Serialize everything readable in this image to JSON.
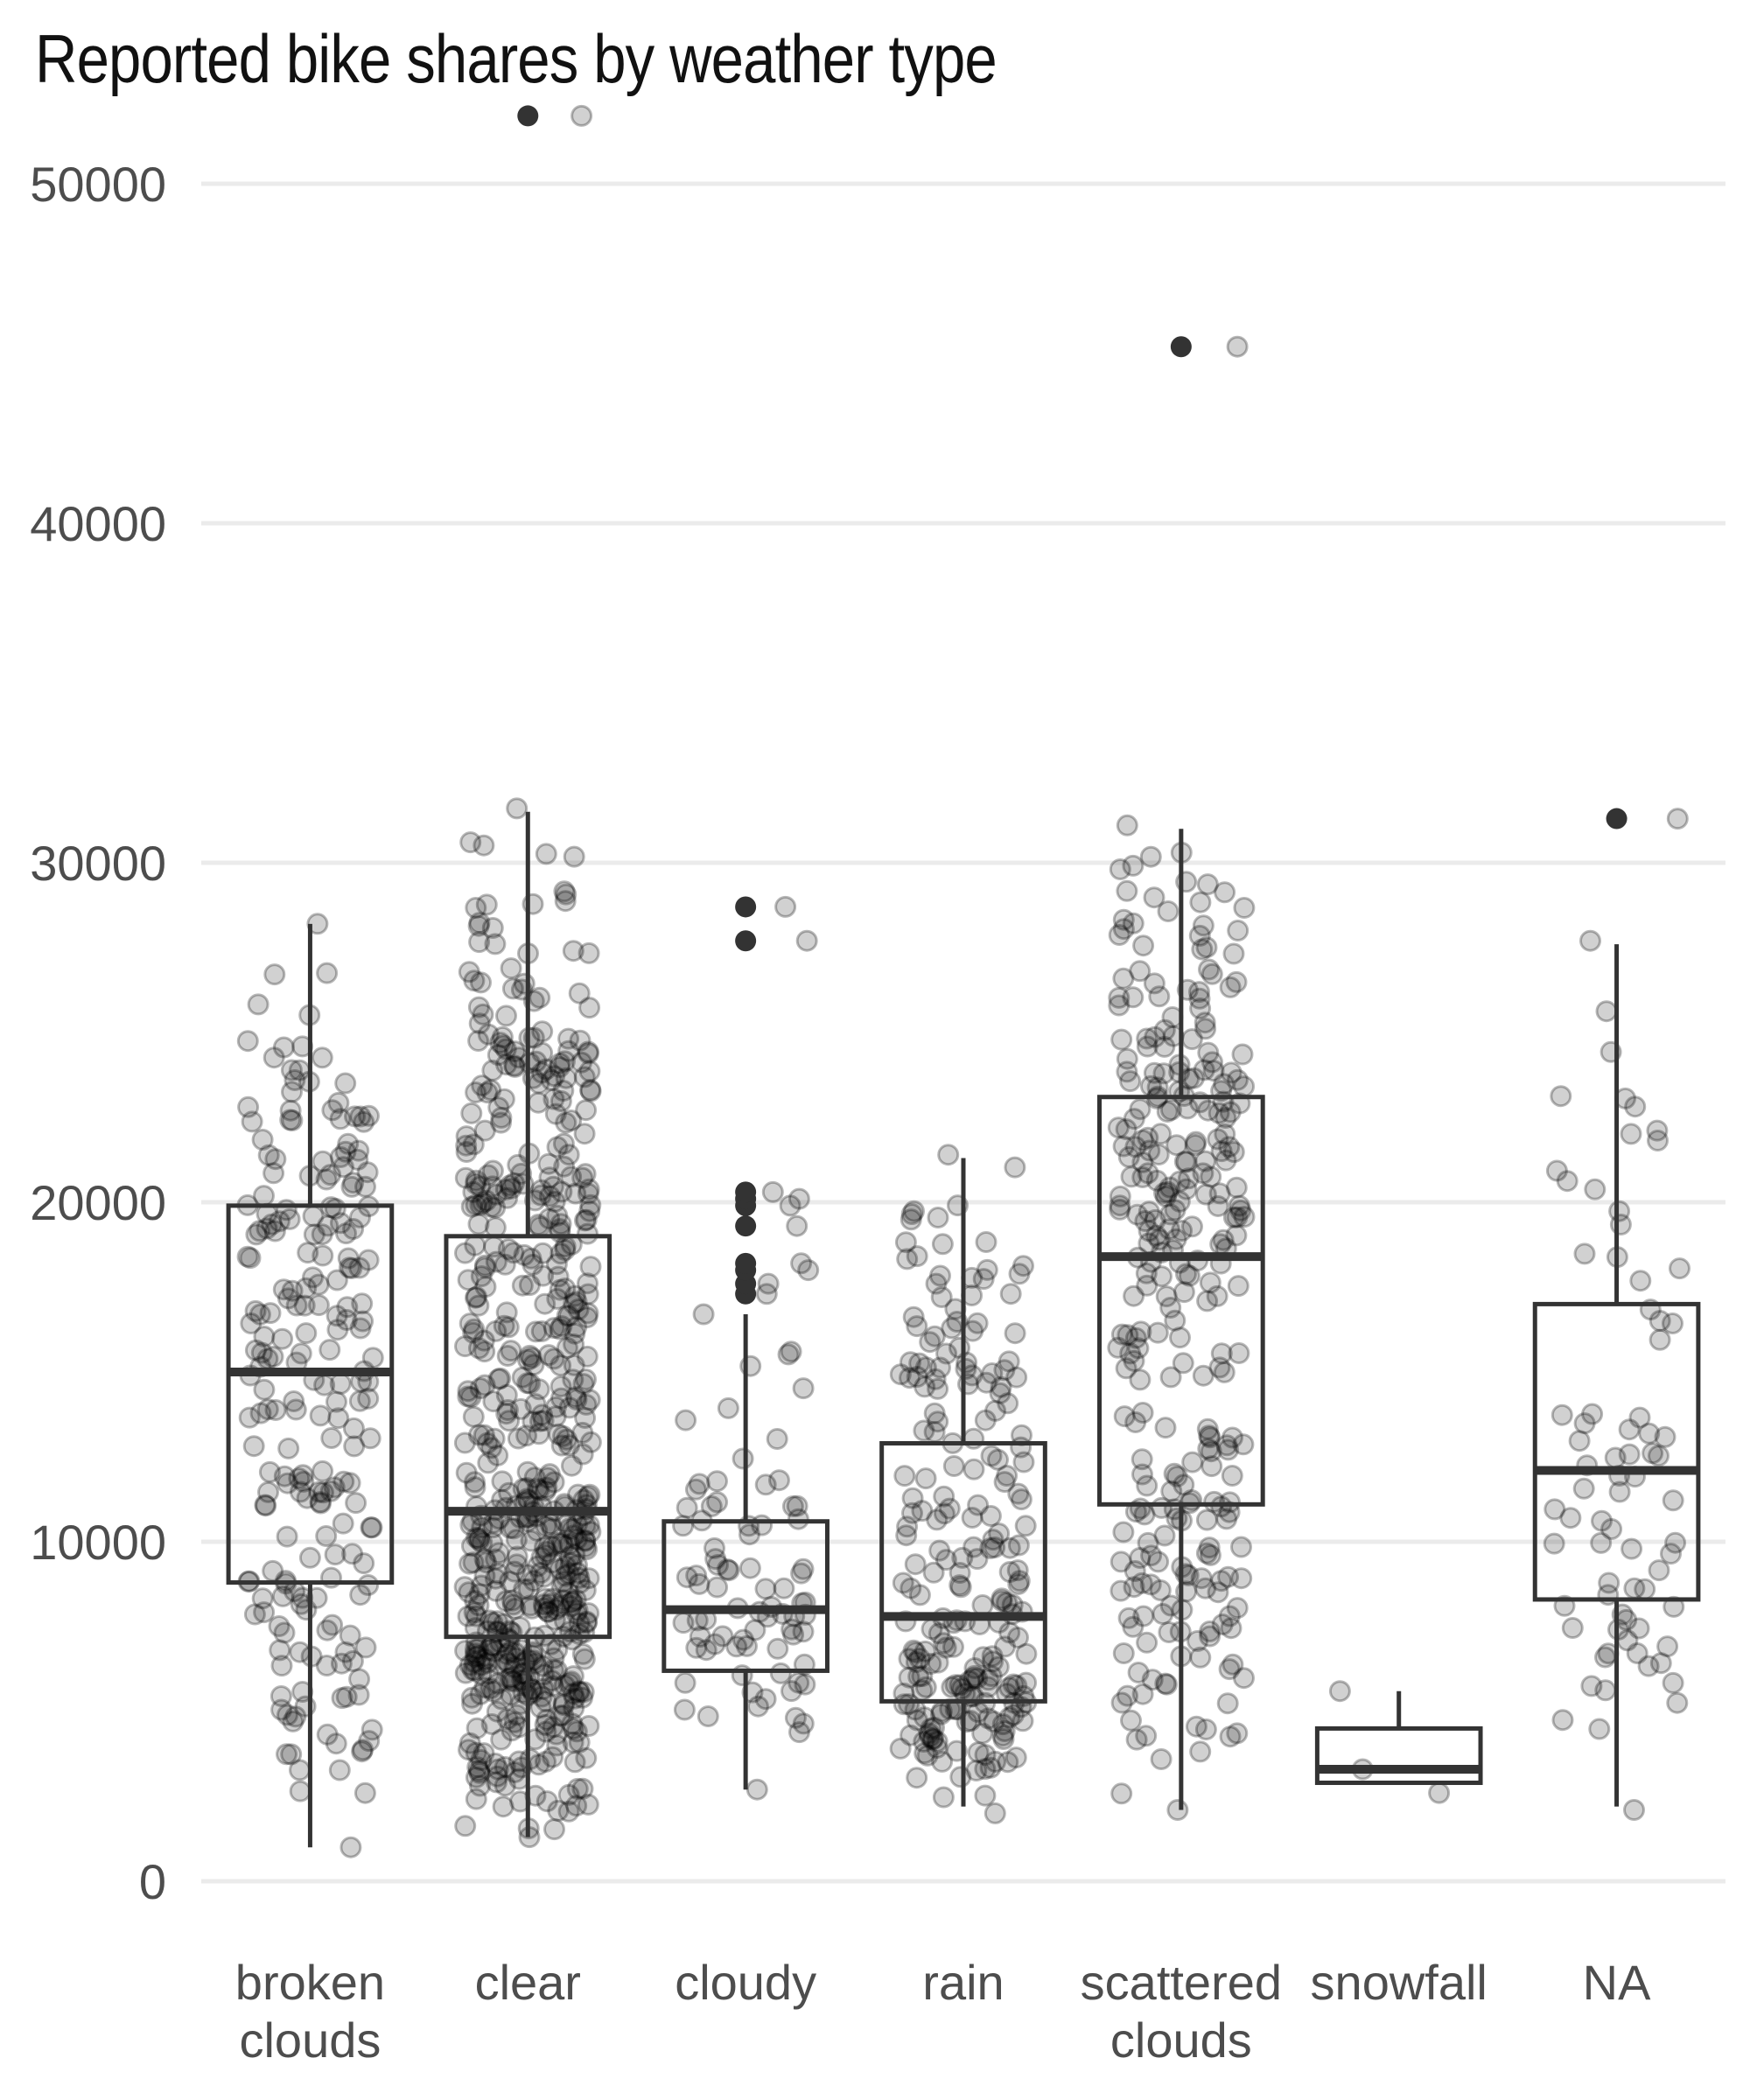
{
  "chart_data": {
    "type": "boxplot",
    "title": "Reported bike shares by weather type",
    "xlabel": "",
    "ylabel": "",
    "categories": [
      "broken clouds",
      "clear",
      "cloudy",
      "rain",
      "scattered clouds",
      "snowfall",
      "NA"
    ],
    "category_labels": [
      [
        "broken",
        "clouds"
      ],
      [
        "clear"
      ],
      [
        "cloudy"
      ],
      [
        "rain"
      ],
      [
        "scattered",
        "clouds"
      ],
      [
        "snowfall"
      ],
      [
        "NA"
      ]
    ],
    "y_ticks": [
      0,
      10000,
      20000,
      30000,
      40000,
      50000
    ],
    "ylim": [
      0,
      52500
    ],
    "grid": true,
    "legend": "none",
    "boxes": [
      {
        "name": "broken clouds",
        "whisker_low": 1000,
        "q1": 8800,
        "median": 15000,
        "q3": 19900,
        "whisker_high": 28200,
        "outliers": [],
        "point_count": 220,
        "points_low": 1000,
        "points_high": 28200
      },
      {
        "name": "clear",
        "whisker_low": 1300,
        "q1": 7200,
        "median": 10900,
        "q3": 19000,
        "whisker_high": 31500,
        "outliers": [
          52000
        ],
        "point_count": 620,
        "points_low": 1300,
        "points_high": 31600
      },
      {
        "name": "cloudy",
        "whisker_low": 2700,
        "q1": 6200,
        "median": 8000,
        "q3": 10600,
        "whisker_high": 16700,
        "outliers": [
          17300,
          17600,
          18000,
          18200,
          19300,
          19900,
          20100,
          20300,
          27700,
          28700
        ],
        "point_count": 80,
        "points_low": 2700,
        "points_high": 16700
      },
      {
        "name": "rain",
        "whisker_low": 2200,
        "q1": 5300,
        "median": 7800,
        "q3": 12900,
        "whisker_high": 21300,
        "outliers": [],
        "point_count": 230,
        "points_low": 2000,
        "points_high": 21400
      },
      {
        "name": "scattered clouds",
        "whisker_low": 2100,
        "q1": 11100,
        "median": 18400,
        "q3": 23100,
        "whisker_high": 31000,
        "outliers": [
          45200
        ],
        "point_count": 300,
        "points_low": 2100,
        "points_high": 31100
      },
      {
        "name": "snowfall",
        "whisker_low": 2900,
        "q1": 2900,
        "median": 3300,
        "q3": 4500,
        "whisker_high": 5600,
        "outliers": [],
        "point_count": 3,
        "points_low": 2600,
        "points_high": 5600
      },
      {
        "name": "NA",
        "whisker_low": 2200,
        "q1": 8300,
        "median": 12100,
        "q3": 17000,
        "whisker_high": 27600,
        "outliers": [
          31300
        ],
        "point_count": 75,
        "points_low": 2100,
        "points_high": 27700
      }
    ],
    "colors": {
      "box": "#333333",
      "point": "#000000",
      "grid": "#ebebeb",
      "axis_text": "#4d4d4d"
    }
  }
}
